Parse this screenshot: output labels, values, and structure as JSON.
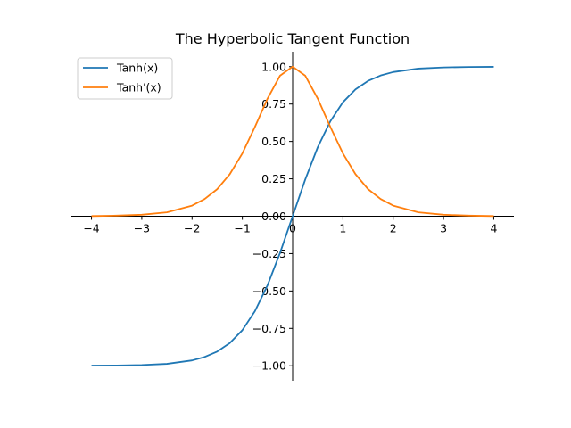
{
  "chart_data": {
    "type": "line",
    "title": "The Hyperbolic Tangent Function",
    "xlabel": "",
    "ylabel": "",
    "xlim": [
      -4.4,
      4.4
    ],
    "ylim": [
      -1.1,
      1.1
    ],
    "x_ticks": [
      -4,
      -3,
      -2,
      -1,
      0,
      1,
      2,
      3,
      4
    ],
    "x_tick_labels": [
      "−4",
      "−3",
      "−2",
      "−1",
      "0",
      "1",
      "2",
      "3",
      "4"
    ],
    "y_ticks": [
      -1.0,
      -0.75,
      -0.5,
      -0.25,
      0.0,
      0.25,
      0.5,
      0.75,
      1.0
    ],
    "y_tick_labels": [
      "−1.00",
      "−0.75",
      "−0.50",
      "−0.25",
      "0.00",
      "0.25",
      "0.50",
      "0.75",
      "1.00"
    ],
    "grid": false,
    "spines": "centered-at-origin",
    "legend": {
      "position": "top-left",
      "entries": [
        "Tanh(x)",
        "Tanh'(x)"
      ]
    },
    "series": [
      {
        "name": "Tanh(x)",
        "color": "#1f77b4",
        "x": [
          -4,
          -3.5,
          -3,
          -2.5,
          -2,
          -1.75,
          -1.5,
          -1.25,
          -1,
          -0.75,
          -0.5,
          -0.25,
          0,
          0.25,
          0.5,
          0.75,
          1,
          1.25,
          1.5,
          1.75,
          2,
          2.5,
          3,
          3.5,
          4
        ],
        "y": [
          -0.999,
          -0.998,
          -0.995,
          -0.987,
          -0.964,
          -0.941,
          -0.905,
          -0.848,
          -0.762,
          -0.635,
          -0.462,
          -0.245,
          0,
          0.245,
          0.462,
          0.635,
          0.762,
          0.848,
          0.905,
          0.941,
          0.964,
          0.987,
          0.995,
          0.998,
          0.999
        ]
      },
      {
        "name": "Tanh'(x)",
        "color": "#ff7f0e",
        "x": [
          -4,
          -3.5,
          -3,
          -2.5,
          -2,
          -1.75,
          -1.5,
          -1.25,
          -1,
          -0.75,
          -0.5,
          -0.25,
          0,
          0.25,
          0.5,
          0.75,
          1,
          1.25,
          1.5,
          1.75,
          2,
          2.5,
          3,
          3.5,
          4
        ],
        "y": [
          0.001,
          0.004,
          0.01,
          0.026,
          0.071,
          0.115,
          0.181,
          0.281,
          0.42,
          0.597,
          0.786,
          0.94,
          1.0,
          0.94,
          0.786,
          0.597,
          0.42,
          0.281,
          0.181,
          0.115,
          0.071,
          0.026,
          0.01,
          0.004,
          0.001
        ]
      }
    ]
  }
}
